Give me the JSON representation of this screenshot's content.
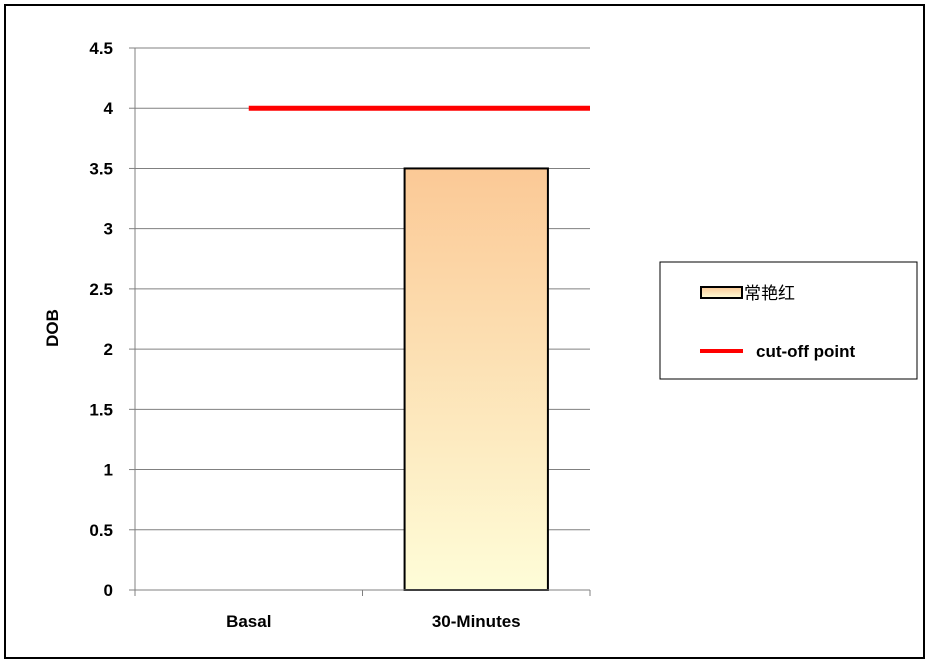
{
  "chart_data": {
    "type": "bar",
    "categories": [
      "Basal",
      "30-Minutes"
    ],
    "series": [
      {
        "name": "常艳红",
        "values": [
          null,
          3.5
        ]
      }
    ],
    "reference_line": {
      "name": "cut-off point",
      "value": 4,
      "color": "#ff0000"
    },
    "title": "",
    "xlabel": "",
    "ylabel": "DOB",
    "ylim": [
      0,
      4.5
    ],
    "yticks": [
      0,
      0.5,
      1,
      1.5,
      2,
      2.5,
      3,
      3.5,
      4,
      4.5
    ],
    "ytick_labels": [
      "0",
      "0.5",
      "1",
      "1.5",
      "2",
      "2.5",
      "3",
      "3.5",
      "4",
      "4.5"
    ],
    "grid": true,
    "legend_position": "right",
    "colors": {
      "bar_top": "#fbc996",
      "bar_bottom": "#fefdd8",
      "line": "#ff0000",
      "grid": "#808080"
    }
  }
}
